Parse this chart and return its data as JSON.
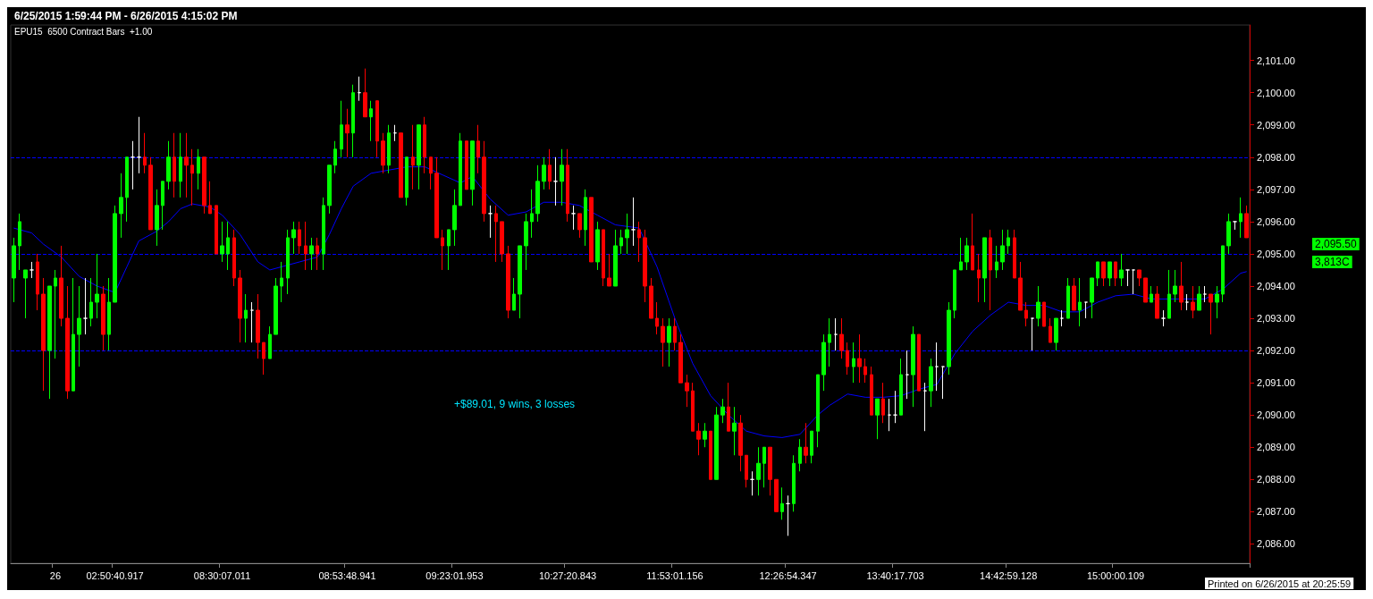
{
  "chart_data": {
    "type": "candlestick",
    "title": "6/25/2015 1:59:44 PM - 6/26/2015 4:15:02 PM",
    "subtitle": "EPU15  6500 Contract Bars  +1.00",
    "categories": [
      null,
      null,
      null,
      null,
      null,
      null,
      null,
      "26",
      null,
      null,
      null,
      null,
      null,
      null,
      null,
      null,
      null,
      "02:50:40.917",
      null,
      null,
      null,
      null,
      null,
      null,
      null,
      null,
      null,
      null,
      null,
      null,
      null,
      null,
      null,
      null,
      null,
      "08:30:07.011",
      null,
      null,
      null,
      null,
      null,
      null,
      null,
      null,
      null,
      null,
      null,
      null,
      null,
      null,
      null,
      null,
      null,
      null,
      null,
      null,
      "08:53:48.941",
      null,
      null,
      null,
      null,
      null,
      null,
      null,
      null,
      null,
      null,
      null,
      null,
      null,
      null,
      null,
      null,
      null,
      "09:23:01.953",
      null,
      null,
      null,
      null,
      null,
      null,
      null,
      null,
      null,
      null,
      null,
      null,
      null,
      null,
      null,
      null,
      null,
      null,
      "10:27:20.843",
      null,
      null,
      null,
      null,
      null,
      null,
      null,
      null,
      null,
      null,
      null,
      null,
      null,
      null,
      null,
      null,
      null,
      "11:53:01.156",
      null,
      null,
      null,
      null,
      null,
      null,
      null,
      null,
      null,
      null,
      null,
      null,
      null,
      null,
      null,
      null,
      null,
      null,
      "12:26:54.347",
      null,
      null,
      null,
      null,
      null,
      null,
      null,
      null,
      null,
      null,
      null,
      null,
      null,
      null,
      null,
      null,
      null,
      "13:40:17.703",
      null,
      null,
      null,
      null,
      null,
      null,
      null,
      null,
      null,
      null,
      null,
      null,
      null,
      null,
      null,
      null,
      null,
      null,
      "14:42:59.128",
      null,
      null,
      null,
      null,
      null,
      null,
      null,
      null,
      null,
      null,
      null,
      null,
      null,
      null,
      null,
      null,
      null,
      "15:00:00.109",
      null,
      null,
      null,
      null,
      null,
      null,
      null,
      null,
      null,
      null,
      null,
      null,
      null,
      null,
      null,
      null,
      null,
      null,
      null,
      null,
      null,
      null
    ],
    "ohlc": [
      [
        2094.25,
        2095.5,
        2093.5,
        2095.25
      ],
      [
        2095.25,
        2096.25,
        2094.5,
        2096
      ],
      [
        2094.25,
        2094.5,
        2093,
        2094.5
      ],
      [
        2094.5,
        2094.75,
        2094.25,
        2094.5
      ],
      [
        2094.75,
        2095,
        2093.25,
        2093.75
      ],
      [
        2093.75,
        2094.25,
        2090.75,
        2092
      ],
      [
        2092,
        2094,
        2090.5,
        2094
      ],
      [
        2094,
        2094.5,
        2091.75,
        2094.25
      ],
      [
        2094.25,
        2095.25,
        2092.75,
        2093
      ],
      [
        2093,
        2094,
        2090.5,
        2090.75
      ],
      [
        2090.75,
        2094.25,
        2090.75,
        2092.5
      ],
      [
        2092.5,
        2094,
        2091.5,
        2093
      ],
      [
        2093,
        2094.25,
        2092.5,
        2093
      ],
      [
        2093,
        2094.25,
        2092.75,
        2093.5
      ],
      [
        2093.5,
        2095,
        2093,
        2093.75
      ],
      [
        2093.75,
        2094,
        2092,
        2092.5
      ],
      [
        2092.5,
        2094.25,
        2092,
        2093.5
      ],
      [
        2093.5,
        2096.5,
        2093.5,
        2096.25
      ],
      [
        2096.25,
        2097.5,
        2095.5,
        2096.75
      ],
      [
        2096.75,
        2098,
        2096,
        2098
      ],
      [
        2098,
        2098.5,
        2097,
        2098
      ],
      [
        2098,
        2099.25,
        2097.5,
        2098
      ],
      [
        2098,
        2098.75,
        2097.5,
        2097.75
      ],
      [
        2097.75,
        2098,
        2095.75,
        2095.75
      ],
      [
        2095.75,
        2097,
        2095.25,
        2096.5
      ],
      [
        2096.5,
        2097.25,
        2095.75,
        2097.25
      ],
      [
        2097.25,
        2098.5,
        2097,
        2098
      ],
      [
        2098,
        2098.75,
        2096.75,
        2097.25
      ],
      [
        2097.25,
        2098.75,
        2096.75,
        2098
      ],
      [
        2098,
        2098.75,
        2096.75,
        2097.75
      ],
      [
        2097.75,
        2098.25,
        2096.5,
        2097.5
      ],
      [
        2097.5,
        2098.25,
        2097,
        2098
      ],
      [
        2098,
        2098,
        2096.25,
        2096.5
      ],
      [
        2096.5,
        2097.25,
        2096.25,
        2096.25
      ],
      [
        2096.5,
        2096.5,
        2095,
        2095
      ],
      [
        2095,
        2096,
        2094.75,
        2095.25
      ],
      [
        2095,
        2096,
        2094.5,
        2095.5
      ],
      [
        2095.5,
        2095.75,
        2094,
        2094.25
      ],
      [
        2094.25,
        2094.5,
        2092.25,
        2093
      ],
      [
        2093,
        2093.75,
        2092.25,
        2093.25
      ],
      [
        2093.25,
        2093.5,
        2092.25,
        2093.25
      ],
      [
        2093.25,
        2093.75,
        2091.75,
        2092.25
      ],
      [
        2092.25,
        2092.25,
        2091.25,
        2091.75
      ],
      [
        2091.75,
        2092.75,
        2091.75,
        2092.5
      ],
      [
        2092.5,
        2094.25,
        2092.5,
        2094
      ],
      [
        2094,
        2094.75,
        2093.5,
        2094.25
      ],
      [
        2094.25,
        2095.75,
        2093.75,
        2095.5
      ],
      [
        2095.5,
        2096,
        2095,
        2095.75
      ],
      [
        2095.75,
        2096,
        2095,
        2095.25
      ],
      [
        2095.25,
        2096,
        2094.5,
        2095
      ],
      [
        2095,
        2095.5,
        2094.5,
        2095.25
      ],
      [
        2095.25,
        2095.5,
        2094.5,
        2095
      ],
      [
        2095,
        2096.75,
        2094.5,
        2096.5
      ],
      [
        2096.5,
        2097.75,
        2096.25,
        2097.75
      ],
      [
        2097.75,
        2098.5,
        2097.5,
        2098.25
      ],
      [
        2098.25,
        2099.75,
        2098,
        2099
      ],
      [
        2099,
        2099.5,
        2098,
        2098.75
      ],
      [
        2098.75,
        2100.25,
        2098,
        2100
      ],
      [
        2100,
        2100.5,
        2099.75,
        2100
      ],
      [
        2100,
        2100.75,
        2099.25,
        2099.25
      ],
      [
        2099.25,
        2099.75,
        2098.5,
        2099.5
      ],
      [
        2099.75,
        2099.75,
        2098,
        2098.5
      ],
      [
        2098.5,
        2098.75,
        2097.5,
        2097.75
      ],
      [
        2097.75,
        2099,
        2097.5,
        2098.75
      ],
      [
        2098.75,
        2099,
        2098.5,
        2098.75
      ],
      [
        2098.75,
        2098.75,
        2096.75,
        2096.75
      ],
      [
        2096.75,
        2098,
        2096.5,
        2098
      ],
      [
        2098,
        2099,
        2097,
        2097.75
      ],
      [
        2097.75,
        2099,
        2097,
        2099
      ],
      [
        2099,
        2099.25,
        2097.5,
        2098
      ],
      [
        2098,
        2098,
        2097,
        2097.5
      ],
      [
        2097.5,
        2098,
        2095.5,
        2095.5
      ],
      [
        2095.5,
        2095.75,
        2094.5,
        2095.25
      ],
      [
        2095.25,
        2095.75,
        2094.5,
        2095.75
      ],
      [
        2095.75,
        2097,
        2095.25,
        2096.5
      ],
      [
        2096.5,
        2098.75,
        2096.5,
        2098.5
      ],
      [
        2098.5,
        2098.5,
        2097,
        2097
      ],
      [
        2097,
        2098.5,
        2096.5,
        2098.5
      ],
      [
        2098.5,
        2099,
        2097.5,
        2098
      ],
      [
        2098,
        2098.5,
        2096,
        2096.25
      ],
      [
        2096.25,
        2096.5,
        2095.5,
        2096.25
      ],
      [
        2096.25,
        2096.5,
        2094.75,
        2096
      ],
      [
        2096,
        2096,
        2094.75,
        2095
      ],
      [
        2095,
        2095.25,
        2093,
        2093.25
      ],
      [
        2093.25,
        2094.25,
        2093.25,
        2093.75
      ],
      [
        2093.75,
        2095.25,
        2093,
        2095.25
      ],
      [
        2095.25,
        2096.25,
        2094.5,
        2096
      ],
      [
        2096,
        2097,
        2095.5,
        2096.25
      ],
      [
        2096.25,
        2097.75,
        2096,
        2097.25
      ],
      [
        2097.25,
        2098,
        2097,
        2097.75
      ],
      [
        2097.75,
        2098.25,
        2097,
        2097.25
      ],
      [
        2097.25,
        2098,
        2096.5,
        2097.25
      ],
      [
        2097.25,
        2098.25,
        2096.5,
        2097.75
      ],
      [
        2097.75,
        2098.25,
        2096,
        2096.25
      ],
      [
        2096.25,
        2096.5,
        2095.75,
        2096.25
      ],
      [
        2096.25,
        2096.25,
        2095.5,
        2095.75
      ],
      [
        2095.75,
        2097,
        2095.25,
        2096.75
      ],
      [
        2096.75,
        2096.75,
        2094.75,
        2094.75
      ],
      [
        2094.75,
        2096,
        2094.5,
        2095.75
      ],
      [
        2095.75,
        2095.75,
        2094,
        2094.25
      ],
      [
        2094.25,
        2095,
        2094,
        2094
      ],
      [
        2094,
        2095.75,
        2094,
        2095.25
      ],
      [
        2095.25,
        2095.75,
        2095,
        2095.5
      ],
      [
        2095.5,
        2096.25,
        2095,
        2095.75
      ],
      [
        2095.75,
        2096.75,
        2095.25,
        2095.75
      ],
      [
        2095.75,
        2096,
        2094.75,
        2095.5
      ],
      [
        2095.5,
        2095.75,
        2093.5,
        2094
      ],
      [
        2094,
        2094.25,
        2093,
        2093
      ],
      [
        2093,
        2093.5,
        2092.5,
        2092.75
      ],
      [
        2092.75,
        2093,
        2091.5,
        2092.25
      ],
      [
        2092.25,
        2093,
        2091.5,
        2092.75
      ],
      [
        2092.75,
        2093,
        2092,
        2092.25
      ],
      [
        2092.25,
        2092.5,
        2091,
        2091
      ],
      [
        2091,
        2091.25,
        2090.25,
        2090.75
      ],
      [
        2090.75,
        2091,
        2089.5,
        2089.5
      ],
      [
        2089.5,
        2089.75,
        2088.75,
        2089.25
      ],
      [
        2089.25,
        2089.75,
        2089,
        2089.5
      ],
      [
        2089.5,
        2089.5,
        2088,
        2088
      ],
      [
        2088,
        2090.25,
        2088,
        2090
      ],
      [
        2090,
        2090.5,
        2089.75,
        2090.25
      ],
      [
        2090.25,
        2091,
        2089.5,
        2089.5
      ],
      [
        2089.5,
        2090.25,
        2088.75,
        2089.75
      ],
      [
        2089.75,
        2090,
        2088.25,
        2088.75
      ],
      [
        2088.75,
        2088.75,
        2087.75,
        2088
      ],
      [
        2088,
        2088.25,
        2087.5,
        2088
      ],
      [
        2088,
        2089,
        2087.5,
        2088.5
      ],
      [
        2088.5,
        2089,
        2087.75,
        2089
      ],
      [
        2089,
        2089,
        2087.5,
        2088
      ],
      [
        2088,
        2088,
        2087,
        2087
      ],
      [
        2087,
        2087.75,
        2086.75,
        2087.25
      ],
      [
        2087.25,
        2087.5,
        2086.25,
        2087.25
      ],
      [
        2087.25,
        2088.75,
        2087,
        2088.5
      ],
      [
        2088.5,
        2089.25,
        2088.25,
        2089
      ],
      [
        2089,
        2089.75,
        2088.5,
        2088.75
      ],
      [
        2088.75,
        2089.5,
        2088.5,
        2089.5
      ],
      [
        2089.5,
        2091.25,
        2089,
        2091.25
      ],
      [
        2091.25,
        2092.5,
        2090.75,
        2092.25
      ],
      [
        2092.25,
        2093,
        2091.5,
        2092.5
      ],
      [
        2092.5,
        2093,
        2092,
        2092.5
      ],
      [
        2092.5,
        2093,
        2091.75,
        2092
      ],
      [
        2092,
        2092.25,
        2091.25,
        2091.5
      ],
      [
        2091.5,
        2092.25,
        2091,
        2091.75
      ],
      [
        2091.75,
        2092.5,
        2091,
        2091.5
      ],
      [
        2091.5,
        2091.75,
        2091,
        2091.25
      ],
      [
        2091.25,
        2091.5,
        2090,
        2090
      ],
      [
        2090,
        2090.5,
        2089.25,
        2090.5
      ],
      [
        2090.5,
        2091,
        2089.75,
        2090
      ],
      [
        2090,
        2090.5,
        2089.5,
        2090
      ],
      [
        2090,
        2090.75,
        2089.75,
        2090
      ],
      [
        2090,
        2091.75,
        2090,
        2091.25
      ],
      [
        2091.25,
        2092,
        2090.5,
        2091.25
      ],
      [
        2091.25,
        2092.75,
        2090.25,
        2092.5
      ],
      [
        2092.5,
        2092.5,
        2090.75,
        2090.75
      ],
      [
        2090.75,
        2091,
        2089.5,
        2090.75
      ],
      [
        2090.75,
        2091.75,
        2090.25,
        2091.5
      ],
      [
        2091.5,
        2092.25,
        2090.75,
        2091.5
      ],
      [
        2091.5,
        2091.5,
        2090.5,
        2091.5
      ],
      [
        2091.5,
        2093.5,
        2091.25,
        2093.25
      ],
      [
        2093.25,
        2094.5,
        2093,
        2094.5
      ],
      [
        2094.5,
        2095.5,
        2094.5,
        2094.75
      ],
      [
        2094.75,
        2095.5,
        2094.5,
        2095.25
      ],
      [
        2095.25,
        2096.25,
        2094.5,
        2094.5
      ],
      [
        2094.5,
        2095,
        2093.5,
        2094.25
      ],
      [
        2094.25,
        2095.5,
        2093.5,
        2095.5
      ],
      [
        2095.5,
        2095.75,
        2093.25,
        2094.5
      ],
      [
        2094.5,
        2095.25,
        2094.25,
        2094.75
      ],
      [
        2094.75,
        2095.75,
        2094.5,
        2095.25
      ],
      [
        2095.25,
        2095.75,
        2095,
        2095.5
      ],
      [
        2095.5,
        2095.75,
        2094.25,
        2094.25
      ],
      [
        2094.25,
        2094.75,
        2093.25,
        2093.25
      ],
      [
        2093.25,
        2093.5,
        2092.75,
        2093
      ],
      [
        2093,
        2093,
        2092,
        2093
      ],
      [
        2093,
        2094,
        2092.75,
        2093.5
      ],
      [
        2093.5,
        2093.5,
        2092.75,
        2092.75
      ],
      [
        2092.75,
        2093,
        2092.25,
        2092.25
      ],
      [
        2092.25,
        2093,
        2092,
        2093
      ],
      [
        2093,
        2093.25,
        2092.75,
        2093
      ],
      [
        2093,
        2094.25,
        2093,
        2094
      ],
      [
        2094,
        2094.25,
        2093.25,
        2093.25
      ],
      [
        2093.25,
        2094.25,
        2092.75,
        2093.5
      ],
      [
        2093.5,
        2093.5,
        2093,
        2093.5
      ],
      [
        2093.5,
        2094.25,
        2093,
        2094.25
      ],
      [
        2094.25,
        2094.75,
        2094,
        2094.75
      ],
      [
        2094.75,
        2094.75,
        2094,
        2094.25
      ],
      [
        2094.25,
        2094.75,
        2094,
        2094.75
      ],
      [
        2094.75,
        2094.75,
        2094,
        2094.25
      ],
      [
        2094.25,
        2095,
        2094,
        2094.5
      ],
      [
        2094.5,
        2094.5,
        2094,
        2094.5
      ],
      [
        2094.5,
        2094.5,
        2093.75,
        2094.5
      ],
      [
        2094.5,
        2094.5,
        2094,
        2094.25
      ],
      [
        2094.25,
        2094.25,
        2093.5,
        2093.5
      ],
      [
        2093.5,
        2094,
        2093.5,
        2093.75
      ],
      [
        2093.75,
        2094,
        2093,
        2093
      ],
      [
        2093,
        2093.25,
        2092.75,
        2093
      ],
      [
        2093,
        2094.5,
        2093,
        2093.75
      ],
      [
        2093.75,
        2094.5,
        2093.5,
        2094
      ],
      [
        2094,
        2094.75,
        2093.25,
        2093.5
      ],
      [
        2093.5,
        2093.75,
        2093.25,
        2093.5
      ],
      [
        2093.5,
        2094,
        2093,
        2093.25
      ],
      [
        2093.25,
        2094,
        2093.25,
        2093.75
      ],
      [
        2093.75,
        2094,
        2093.5,
        2093.75
      ],
      [
        2093.75,
        2093.75,
        2092.5,
        2093.5
      ],
      [
        2093.5,
        2094,
        2093,
        2093.75
      ],
      [
        2093.75,
        2095.25,
        2093.5,
        2095.25
      ],
      [
        2095.25,
        2096.25,
        2095,
        2096
      ],
      [
        2096,
        2096,
        2095.75,
        2096
      ],
      [
        2096,
        2096.75,
        2095.5,
        2096.25
      ],
      [
        2096.25,
        2096.5,
        2095.5,
        2095.5
      ]
    ],
    "colors": [
      "#00ff00",
      "#00ff00",
      "#00ff00",
      "#ffffff",
      "#ff0000",
      "#ff0000",
      "#00ff00",
      "#00ff00",
      "#ff0000",
      "#ff0000",
      "#00ff00",
      "#00ff00",
      "#ffffff",
      "#00ff00",
      "#00ff00",
      "#ff0000",
      "#00ff00",
      "#00ff00",
      "#00ff00",
      "#00ff00",
      "#ffffff",
      "#ffffff",
      "#ff0000",
      "#ff0000",
      "#00ff00",
      "#00ff00",
      "#00ff00",
      "#ff0000",
      "#00ff00",
      "#ff0000",
      "#ff0000",
      "#00ff00",
      "#ff0000",
      "#ff0000",
      "#ff0000",
      "#00ff00",
      "#00ff00",
      "#ff0000",
      "#ff0000",
      "#00ff00",
      "#ffffff",
      "#ff0000",
      "#ff0000",
      "#00ff00",
      "#00ff00",
      "#00ff00",
      "#00ff00",
      "#00ff00",
      "#ff0000",
      "#ff0000",
      "#00ff00",
      "#ff0000",
      "#00ff00",
      "#00ff00",
      "#00ff00",
      "#00ff00",
      "#ff0000",
      "#00ff00",
      "#ffffff",
      "#ff0000",
      "#00ff00",
      "#ff0000",
      "#ff0000",
      "#00ff00",
      "#ffffff",
      "#ff0000",
      "#00ff00",
      "#ff0000",
      "#00ff00",
      "#ff0000",
      "#ff0000",
      "#ff0000",
      "#ff0000",
      "#00ff00",
      "#00ff00",
      "#00ff00",
      "#ff0000",
      "#00ff00",
      "#ff0000",
      "#ff0000",
      "#ffffff",
      "#ff0000",
      "#ff0000",
      "#ff0000",
      "#00ff00",
      "#00ff00",
      "#00ff00",
      "#00ff00",
      "#00ff00",
      "#00ff00",
      "#ff0000",
      "#ffffff",
      "#00ff00",
      "#ff0000",
      "#ffffff",
      "#ff0000",
      "#00ff00",
      "#ff0000",
      "#00ff00",
      "#ff0000",
      "#ff0000",
      "#00ff00",
      "#00ff00",
      "#00ff00",
      "#ffffff",
      "#ff0000",
      "#ff0000",
      "#ff0000",
      "#ff0000",
      "#ff0000",
      "#00ff00",
      "#ff0000",
      "#ff0000",
      "#ff0000",
      "#ff0000",
      "#ff0000",
      "#00ff00",
      "#ff0000",
      "#00ff00",
      "#00ff00",
      "#ff0000",
      "#00ff00",
      "#ff0000",
      "#ff0000",
      "#ffffff",
      "#00ff00",
      "#00ff00",
      "#ff0000",
      "#ff0000",
      "#00ff00",
      "#ffffff",
      "#00ff00",
      "#00ff00",
      "#ff0000",
      "#00ff00",
      "#00ff00",
      "#00ff00",
      "#00ff00",
      "#ffffff",
      "#ff0000",
      "#ff0000",
      "#00ff00",
      "#ff0000",
      "#ff0000",
      "#ff0000",
      "#00ff00",
      "#ff0000",
      "#ffffff",
      "#ffffff",
      "#00ff00",
      "#ffffff",
      "#00ff00",
      "#ff0000",
      "#ffffff",
      "#00ff00",
      "#ffffff",
      "#ffffff",
      "#00ff00",
      "#00ff00",
      "#00ff00",
      "#00ff00",
      "#ff0000",
      "#ff0000",
      "#00ff00",
      "#ff0000",
      "#00ff00",
      "#00ff00",
      "#00ff00",
      "#ff0000",
      "#ff0000",
      "#ff0000",
      "#ffffff",
      "#00ff00",
      "#ff0000",
      "#ff0000",
      "#00ff00",
      "#ffffff",
      "#00ff00",
      "#ff0000",
      "#00ff00",
      "#ffffff",
      "#00ff00",
      "#00ff00",
      "#ff0000",
      "#00ff00",
      "#ff0000",
      "#00ff00",
      "#ffffff",
      "#ffffff",
      "#ff0000",
      "#ff0000",
      "#00ff00",
      "#ff0000",
      "#ffffff",
      "#00ff00",
      "#00ff00",
      "#ff0000",
      "#ffffff",
      "#ff0000",
      "#00ff00",
      "#ffffff",
      "#ff0000",
      "#00ff00",
      "#00ff00",
      "#00ff00",
      "#ffffff",
      "#00ff00",
      "#ff0000"
    ],
    "series": [
      {
        "type": "line",
        "color": "#0000ff",
        "values": [
          2095.8,
          null,
          null,
          2095.65,
          null,
          2095.3,
          null,
          null,
          2094.9,
          null,
          null,
          2094.3,
          null,
          null,
          2094,
          null,
          null,
          2093.8,
          null,
          2094.6,
          null,
          2095.4,
          null,
          null,
          2095.7,
          null,
          2096,
          null,
          2096.4,
          null,
          2096.55,
          null,
          null,
          2096.45,
          null,
          2096.2,
          null,
          null,
          2095.6,
          null,
          null,
          2094.75,
          null,
          2094.5,
          null,
          2094.6,
          null,
          null,
          2094.75,
          null,
          null,
          2094.9,
          null,
          2095.6,
          null,
          2096.4,
          null,
          2097.1,
          null,
          null,
          2097.5,
          null,
          null,
          2097.6,
          null,
          null,
          2097.7,
          null,
          null,
          2097.7,
          null,
          null,
          2097.45,
          null,
          null,
          2097.2,
          null,
          2097.4,
          null,
          null,
          2096.7,
          null,
          null,
          2096.2,
          null,
          null,
          2096.3,
          null,
          null,
          2096.6,
          null,
          null,
          2096.6,
          null,
          null,
          2096.5,
          null,
          null,
          2096.2,
          null,
          null,
          2095.9,
          null,
          2095.85,
          null,
          2095.8,
          null,
          null,
          2094.6,
          null,
          null,
          2093,
          null,
          null,
          2091.6,
          null,
          null,
          2090.6,
          null,
          null,
          2090,
          null,
          null,
          2089.5,
          null,
          null,
          2089.35,
          null,
          null,
          2089.3,
          null,
          null,
          2089.4,
          null,
          null,
          2090,
          null,
          2090.3,
          null,
          null,
          2090.65,
          null,
          null,
          2090.55,
          null,
          null,
          2090.55,
          null,
          null,
          2090.6,
          null,
          null,
          2090.8,
          null,
          null,
          2090.95,
          null,
          null,
          2091.9,
          null,
          null,
          2092.6,
          null,
          null,
          2093.1,
          null,
          null,
          2093.5,
          null,
          null,
          2093.4,
          null,
          null,
          2093.4,
          null,
          null,
          2093.2,
          null,
          null,
          2093.2,
          null,
          null,
          2093.5,
          null,
          null,
          2093.7,
          null,
          null,
          2093.75,
          null,
          null,
          2093.6,
          null,
          null,
          2093.6,
          null,
          null,
          2093.6,
          null,
          null,
          2093.6,
          null,
          null,
          2093.9,
          null,
          null,
          2094.4,
          2094.45
        ]
      }
    ],
    "ylim": [
      2085.4,
      2102.1
    ],
    "yticks": [
      {
        "value": 2086,
        "label": "2,086.00"
      },
      {
        "value": 2087,
        "label": "2,087.00"
      },
      {
        "value": 2088,
        "label": "2,088.00"
      },
      {
        "value": 2089,
        "label": "2,089.00"
      },
      {
        "value": 2090,
        "label": "2,090.00"
      },
      {
        "value": 2091,
        "label": "2,091.00"
      },
      {
        "value": 2092,
        "label": "2,092.00"
      },
      {
        "value": 2093,
        "label": "2,093.00"
      },
      {
        "value": 2094,
        "label": "2,094.00"
      },
      {
        "value": 2095,
        "label": "2,095.00"
      },
      {
        "value": 2096,
        "label": "2,096.00"
      },
      {
        "value": 2097,
        "label": "2,097.00"
      },
      {
        "value": 2098,
        "label": "2,098.00"
      },
      {
        "value": 2099,
        "label": "2,099.00"
      },
      {
        "value": 2100,
        "label": "2,100.00"
      },
      {
        "value": 2101,
        "label": "2,101.00"
      }
    ],
    "ref_lines": [
      {
        "axis": "y",
        "value": 2098,
        "color": "#0000ff",
        "line_style": "dashed"
      },
      {
        "axis": "y",
        "value": 2095,
        "color": "#0000ff",
        "line_style": "dashed"
      },
      {
        "axis": "y",
        "value": 2092,
        "color": "#0000ff",
        "line_style": "dashed"
      }
    ],
    "annotations": [
      "+$89.01, 9 wins, 3 losses",
      "2,095.50",
      "3,813C",
      "Printed on 6/26/2015 at 20:25:59"
    ],
    "grid": false
  }
}
